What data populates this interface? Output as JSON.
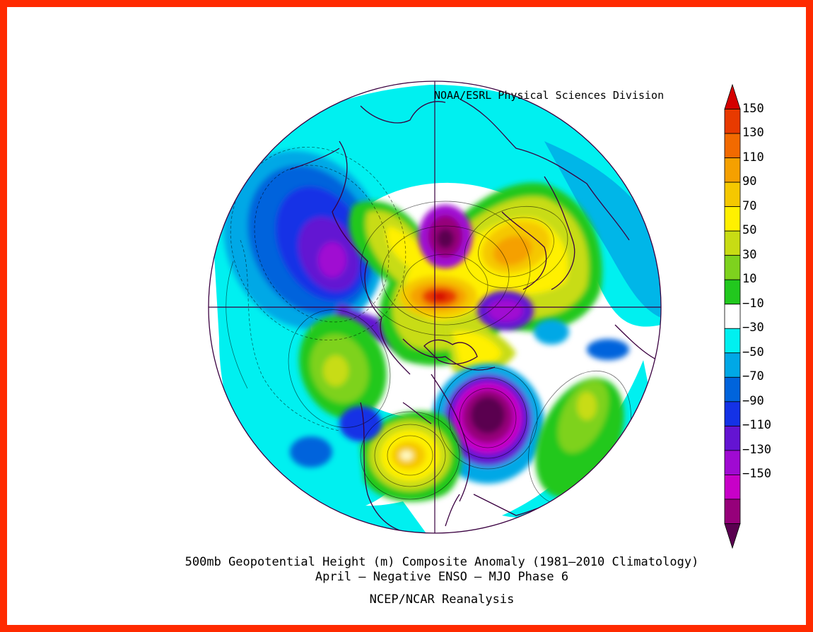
{
  "credit": "NOAA/ESRL Physical Sciences Division",
  "caption": {
    "line1": "500mb Geopotential Height (m) Composite Anomaly (1981–2010 Climatology)",
    "line2": "April – Negative ENSO – MJO Phase 6",
    "line3": "NCEP/NCAR Reanalysis"
  },
  "colorbar": {
    "labels": [
      "150",
      "130",
      "110",
      "90",
      "70",
      "50",
      "30",
      "10",
      "−10",
      "−30",
      "−50",
      "−70",
      "−90",
      "−110",
      "−130",
      "−150"
    ],
    "colors": [
      "#d40000",
      "#e83a00",
      "#f26a00",
      "#f5a000",
      "#f5c800",
      "#fff000",
      "#c8dc14",
      "#7ed21e",
      "#22c81e",
      "#ffffff",
      "#00f0f0",
      "#00a8e6",
      "#0064dc",
      "#1432e6",
      "#6414d2",
      "#a00ad2",
      "#c800c8",
      "#96007a",
      "#5a0050"
    ]
  },
  "colors": {
    "frame": "#ff2a00",
    "coast": "#3a0040"
  }
}
